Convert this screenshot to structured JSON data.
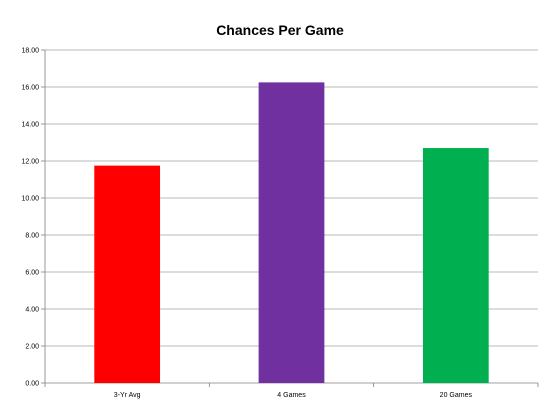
{
  "chart_data": {
    "type": "bar",
    "title": "Chances Per Game",
    "xlabel": "",
    "ylabel": "",
    "categories": [
      "3-Yr Avg",
      "4 Games",
      "20 Games"
    ],
    "values": [
      11.75,
      16.25,
      12.7
    ],
    "colors": [
      "#ff0000",
      "#7030a0",
      "#00b050"
    ],
    "ylim": [
      0,
      18
    ],
    "yticks": [
      "0.00",
      "2.00",
      "4.00",
      "6.00",
      "8.00",
      "10.00",
      "12.00",
      "14.00",
      "16.00",
      "18.00"
    ],
    "grid": true,
    "legend": "none"
  }
}
